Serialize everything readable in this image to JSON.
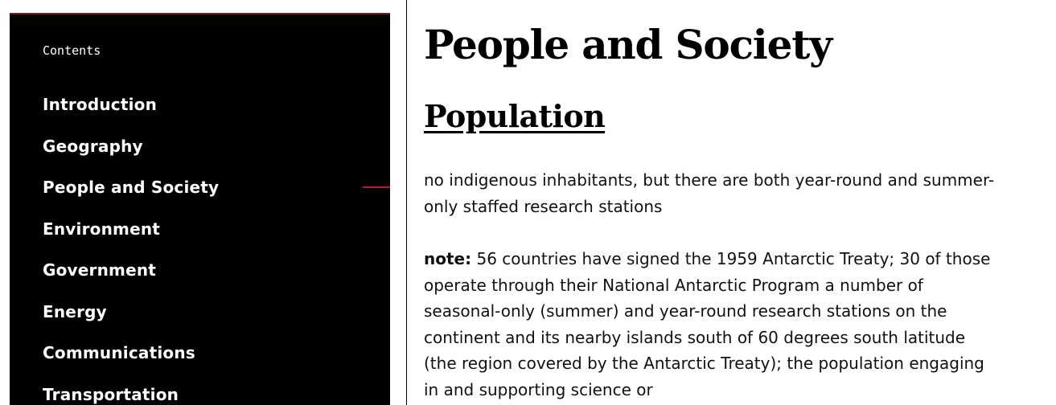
{
  "toc": {
    "title": "Contents",
    "items": [
      {
        "label": "Introduction"
      },
      {
        "label": "Geography"
      },
      {
        "label": "People and Society"
      },
      {
        "label": "Environment"
      },
      {
        "label": "Government"
      },
      {
        "label": "Energy"
      },
      {
        "label": "Communications"
      },
      {
        "label": "Transportation"
      }
    ],
    "active_item": "People and Society",
    "accent_color": "#c0143c"
  },
  "main": {
    "title": "People and Society",
    "section_title": "Population",
    "paragraph1": "no indigenous inhabitants, but there are both year-round and summer-only staffed research stations",
    "note_label": "note:",
    "note_text": " 56 countries have signed the 1959 Antarctic Treaty; 30 of those operate through their National Antarctic Program a number of seasonal-only (summer) and year-round research stations on the continent and its nearby islands south of 60 degrees south latitude (the region covered by the Antarctic Treaty); the population engaging in and supporting science or"
  }
}
